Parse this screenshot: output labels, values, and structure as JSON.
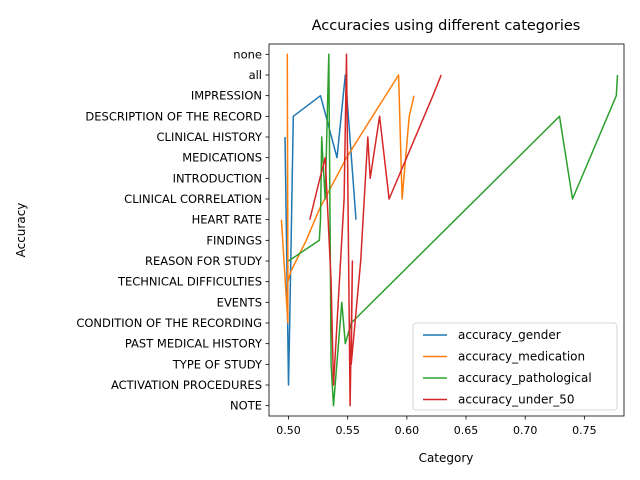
{
  "chart_data": {
    "type": "line",
    "title": "Accuracies using different categories",
    "xlabel": "Category",
    "ylabel": "Accuracy",
    "xlim": [
      0.4835,
      0.7835
    ],
    "x_ticks": [
      0.5,
      0.55,
      0.6,
      0.65,
      0.7,
      0.75
    ],
    "x_tick_labels": [
      "0.50",
      "0.55",
      "0.60",
      "0.65",
      "0.70",
      "0.75"
    ],
    "categories": [
      "NOTE",
      "ACTIVATION PROCEDURES",
      "TYPE OF STUDY",
      "PAST MEDICAL HISTORY",
      "CONDITION OF THE RECORDING",
      "EVENTS",
      "TECHNICAL DIFFICULTIES",
      "REASON FOR STUDY",
      "FINDINGS",
      "HEART RATE",
      "CLINICAL CORRELATION",
      "INTRODUCTION",
      "MEDICATIONS",
      "CLINICAL HISTORY",
      "DESCRIPTION OF THE RECORD",
      "IMPRESSION",
      "all",
      "none"
    ],
    "grid": false,
    "legend_position": "lower-right",
    "series": [
      {
        "name": "accuracy_gender",
        "color": "#1f77b4",
        "points": [
          [
            0.557,
            9
          ],
          [
            0.548,
            16
          ],
          [
            0.541,
            12
          ],
          [
            0.527,
            15
          ],
          [
            0.504,
            14
          ],
          [
            0.501,
            4
          ],
          [
            0.5,
            1
          ],
          [
            0.4985,
            7
          ],
          [
            0.497,
            13
          ]
        ]
      },
      {
        "name": "accuracy_medication",
        "color": "#ff7f0e",
        "points": [
          [
            0.494,
            9
          ],
          [
            0.4995,
            4
          ],
          [
            0.499,
            17
          ],
          [
            0.4995,
            6
          ],
          [
            0.502,
            6.5
          ],
          [
            0.515,
            8
          ],
          [
            0.526,
            9.5
          ],
          [
            0.549,
            12
          ],
          [
            0.571,
            14
          ],
          [
            0.593,
            16
          ],
          [
            0.596,
            10
          ],
          [
            0.602,
            14
          ],
          [
            0.606,
            15
          ]
        ]
      },
      {
        "name": "accuracy_pathological",
        "color": "#2ca02c",
        "points": [
          [
            0.778,
            16
          ],
          [
            0.777,
            15
          ],
          [
            0.74,
            10
          ],
          [
            0.729,
            14
          ],
          [
            0.553,
            4
          ],
          [
            0.548,
            3
          ],
          [
            0.545,
            5
          ],
          [
            0.538,
            0
          ],
          [
            0.537,
            1
          ],
          [
            0.536,
            2
          ],
          [
            0.534,
            17
          ],
          [
            0.531,
            10
          ],
          [
            0.529,
            12
          ],
          [
            0.528,
            13
          ],
          [
            0.527,
            9
          ],
          [
            0.526,
            8
          ],
          [
            0.5,
            7
          ]
        ]
      },
      {
        "name": "accuracy_under_50",
        "color": "#d62728",
        "points": [
          [
            0.629,
            16
          ],
          [
            0.622,
            15
          ],
          [
            0.585,
            10
          ],
          [
            0.577,
            14
          ],
          [
            0.569,
            11
          ],
          [
            0.567,
            13
          ],
          [
            0.561,
            7
          ],
          [
            0.553,
            2
          ],
          [
            0.554,
            7
          ],
          [
            0.552,
            0
          ],
          [
            0.549,
            17
          ],
          [
            0.547,
            10
          ],
          [
            0.538,
            1
          ],
          [
            0.536,
            6
          ],
          [
            0.531,
            12
          ],
          [
            0.5265,
            11
          ],
          [
            0.518,
            9
          ]
        ]
      }
    ]
  }
}
